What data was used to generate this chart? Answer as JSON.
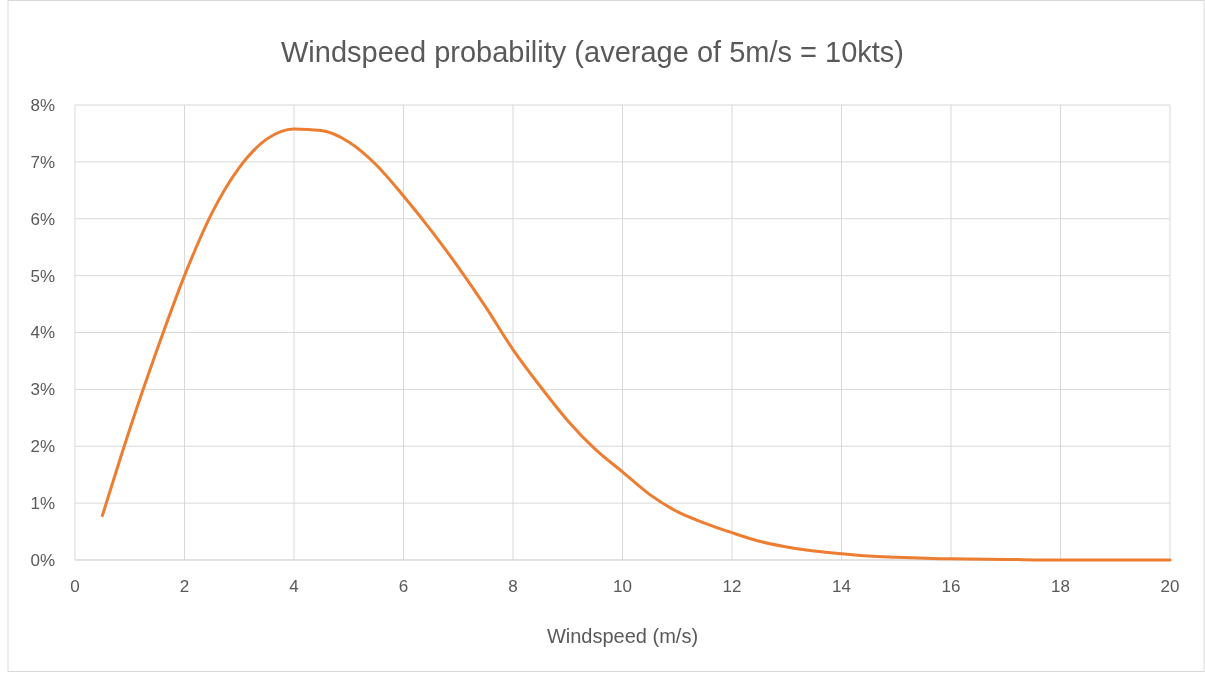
{
  "chart_data": {
    "type": "line",
    "title": "Windspeed probability (average of 5m/s = 10kts)",
    "xlabel": "Windspeed (m/s)",
    "x": [
      0.5,
      1,
      1.5,
      2,
      2.5,
      3,
      3.5,
      4,
      4.5,
      5,
      5.5,
      6,
      6.5,
      7,
      7.5,
      8,
      8.5,
      9,
      9.5,
      10,
      10.5,
      11,
      11.5,
      12,
      12.5,
      13,
      13.5,
      14,
      14.5,
      15,
      16,
      17,
      18,
      19,
      20
    ],
    "series": [
      {
        "color": "#ed7d31",
        "values": [
          0.78,
          2.3,
          3.7,
          5.0,
          6.1,
          6.9,
          7.4,
          7.58,
          7.55,
          7.35,
          6.95,
          6.4,
          5.8,
          5.15,
          4.45,
          3.7,
          3.05,
          2.45,
          1.95,
          1.55,
          1.15,
          0.85,
          0.65,
          0.48,
          0.33,
          0.23,
          0.16,
          0.11,
          0.07,
          0.05,
          0.02,
          0.01,
          0,
          0,
          0
        ]
      }
    ],
    "xlim": [
      0,
      20
    ],
    "xticks": [
      0,
      2,
      4,
      6,
      8,
      10,
      12,
      14,
      16,
      18,
      20
    ],
    "ylim": [
      0,
      8
    ],
    "yticks": [
      {
        "value": 0,
        "label": "0%"
      },
      {
        "value": 1,
        "label": "1%"
      },
      {
        "value": 2,
        "label": "2%"
      },
      {
        "value": 3,
        "label": "3%"
      },
      {
        "value": 4,
        "label": "4%"
      },
      {
        "value": 5,
        "label": "5%"
      },
      {
        "value": 6,
        "label": "6%"
      },
      {
        "value": 7,
        "label": "7%"
      },
      {
        "value": 8,
        "label": "8%"
      }
    ],
    "grid": true,
    "marker": "none",
    "line_style": "solid"
  }
}
